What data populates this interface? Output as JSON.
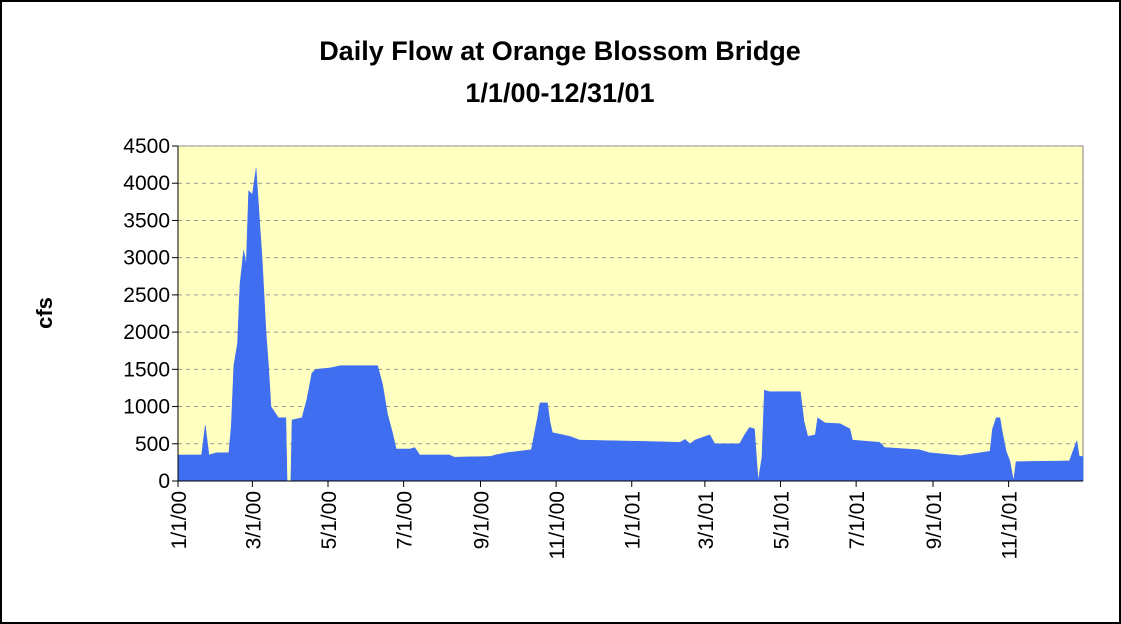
{
  "chart_data": {
    "type": "area",
    "title": "Daily Flow at Orange Blossom Bridge",
    "subtitle": "1/1/00-12/31/01",
    "y_label": "cfs",
    "color": "#3f6ff0",
    "plot_background": "#ffffc0",
    "grid": true,
    "ylim": [
      0,
      4500
    ],
    "yticks": [
      0,
      500,
      1000,
      1500,
      2000,
      2500,
      3000,
      3500,
      4000,
      4500
    ],
    "xlim": [
      "1/1/00",
      "12/31/01"
    ],
    "xticks": [
      "1/1/00",
      "3/1/00",
      "5/1/00",
      "7/1/00",
      "9/1/00",
      "11/1/00",
      "1/1/01",
      "3/1/01",
      "5/1/01",
      "7/1/01",
      "9/1/01",
      "11/1/01"
    ],
    "x": [
      "1/1/00",
      "1/20/00",
      "1/23/00",
      "1/26/00",
      "2/1/00",
      "2/11/00",
      "2/13/00",
      "2/15/00",
      "2/18/00",
      "2/20/00",
      "2/23/00",
      "2/25/00",
      "2/27/00",
      "3/1/00",
      "3/4/00",
      "3/6/00",
      "3/9/00",
      "3/12/00",
      "3/14/00",
      "3/16/00",
      "3/22/00",
      "3/28/00",
      "3/29/00",
      "4/1/00",
      "4/2/00",
      "4/10/00",
      "4/14/00",
      "4/18/00",
      "4/21/00",
      "5/3/00",
      "5/11/00",
      "6/10/00",
      "6/14/00",
      "6/18/00",
      "6/22/00",
      "6/25/00",
      "7/6/00",
      "7/10/00",
      "7/14/00",
      "8/7/00",
      "8/11/00",
      "9/9/00",
      "9/13/00",
      "9/22/00",
      "10/12/00",
      "10/17/00",
      "10/19/00",
      "10/25/00",
      "10/27/00",
      "10/29/00",
      "11/12/00",
      "11/20/00",
      "1/16/01",
      "2/9/01",
      "2/13/01",
      "2/17/01",
      "2/21/01",
      "3/5/01",
      "3/9/01",
      "3/29/01",
      "4/2/01",
      "4/6/01",
      "4/10/01",
      "4/13/01",
      "4/16/01",
      "4/18/01",
      "4/22/01",
      "5/17/01",
      "5/20/01",
      "5/23/01",
      "5/29/01",
      "5/31/01",
      "6/6/01",
      "6/18/01",
      "6/26/01",
      "6/28/01",
      "7/12/01",
      "7/20/01",
      "7/24/01",
      "8/21/01",
      "8/29/01",
      "9/23/01",
      "10/17/01",
      "10/19/01",
      "10/22/01",
      "10/25/01",
      "10/27/01",
      "10/30/01",
      "11/2/01",
      "11/5/01",
      "11/7/01",
      "12/20/01",
      "12/26/01",
      "12/28/01",
      "12/31/01"
    ],
    "values": [
      350,
      350,
      750,
      350,
      380,
      380,
      750,
      1550,
      1850,
      2650,
      3100,
      2900,
      3900,
      3850,
      4200,
      3700,
      2950,
      2000,
      1550,
      1000,
      850,
      850,
      0,
      0,
      820,
      850,
      1100,
      1450,
      1500,
      1520,
      1550,
      1550,
      1300,
      900,
      650,
      430,
      430,
      450,
      350,
      350,
      320,
      330,
      350,
      380,
      420,
      850,
      1050,
      1050,
      800,
      650,
      600,
      550,
      530,
      520,
      560,
      500,
      550,
      620,
      500,
      500,
      620,
      720,
      700,
      0,
      320,
      1220,
      1200,
      1200,
      800,
      600,
      620,
      850,
      780,
      770,
      700,
      550,
      530,
      520,
      450,
      420,
      380,
      340,
      400,
      700,
      850,
      850,
      650,
      400,
      270,
      0,
      260,
      270,
      540,
      330,
      330
    ]
  }
}
